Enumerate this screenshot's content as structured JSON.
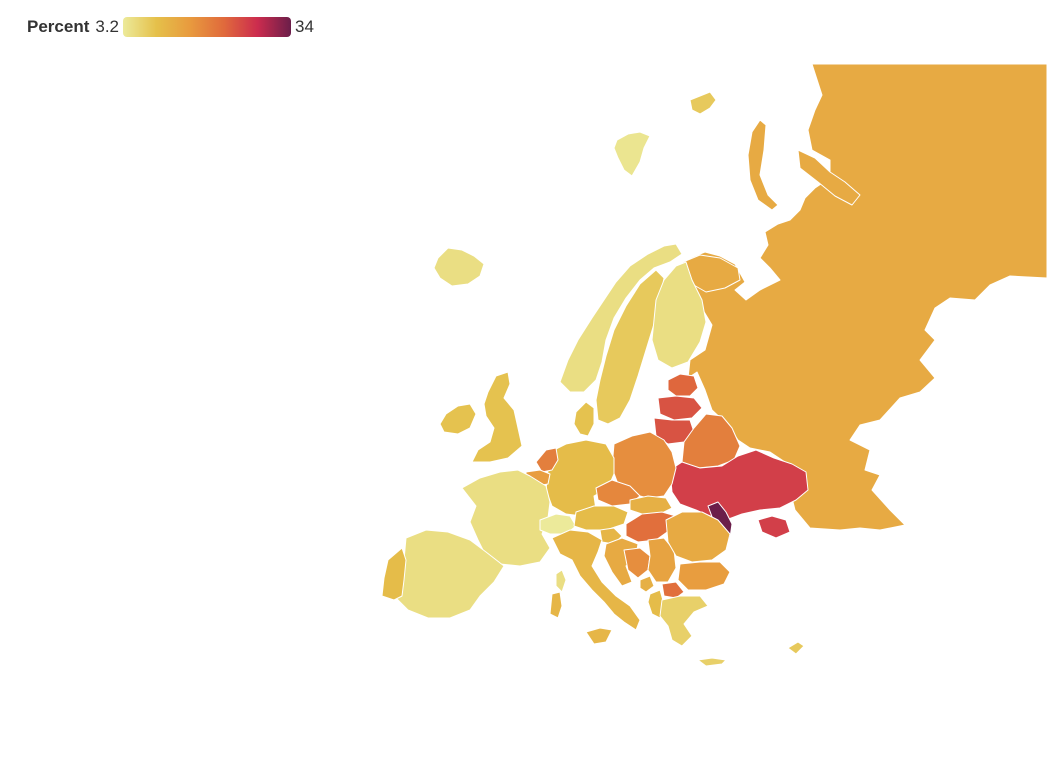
{
  "legend": {
    "title": "Percent",
    "min_label": "3.2",
    "max_label": "34",
    "min": 3.2,
    "max": 34,
    "gradient": [
      "#ecea9a",
      "#e5c04a",
      "#e89a3e",
      "#e06a3c",
      "#cc2c4e",
      "#6b1e4a"
    ]
  },
  "regions": [
    {
      "id": "russia",
      "value": 13
    },
    {
      "id": "novaya-zemlya",
      "value": 13
    },
    {
      "id": "kola",
      "value": 13
    },
    {
      "id": "iceland",
      "value": 5
    },
    {
      "id": "svalbard",
      "value": 4
    },
    {
      "id": "franz-josef",
      "value": 8
    },
    {
      "id": "norway",
      "value": 5
    },
    {
      "id": "sweden",
      "value": 8
    },
    {
      "id": "finland",
      "value": 5
    },
    {
      "id": "estonia",
      "value": 22
    },
    {
      "id": "latvia",
      "value": 24
    },
    {
      "id": "lithuania",
      "value": 24
    },
    {
      "id": "belarus",
      "value": 19
    },
    {
      "id": "ukraine",
      "value": 26
    },
    {
      "id": "crimea",
      "value": 26
    },
    {
      "id": "moldova",
      "value": 34
    },
    {
      "id": "poland",
      "value": 17
    },
    {
      "id": "germany",
      "value": 10
    },
    {
      "id": "denmark",
      "value": 9
    },
    {
      "id": "netherlands",
      "value": 19
    },
    {
      "id": "belgium",
      "value": 15
    },
    {
      "id": "france",
      "value": 5
    },
    {
      "id": "spain",
      "value": 5
    },
    {
      "id": "portugal",
      "value": 10
    },
    {
      "id": "uk",
      "value": 9
    },
    {
      "id": "ireland",
      "value": 9
    },
    {
      "id": "switzerland",
      "value": 3.2
    },
    {
      "id": "austria",
      "value": 10
    },
    {
      "id": "czechia",
      "value": 18
    },
    {
      "id": "slovakia",
      "value": 12
    },
    {
      "id": "hungary",
      "value": 21
    },
    {
      "id": "slovenia",
      "value": 11
    },
    {
      "id": "croatia",
      "value": 13
    },
    {
      "id": "bosnia",
      "value": 17
    },
    {
      "id": "serbia",
      "value": 14
    },
    {
      "id": "romania",
      "value": 13
    },
    {
      "id": "bulgaria",
      "value": 15
    },
    {
      "id": "north-macedonia",
      "value": 21
    },
    {
      "id": "albania",
      "value": 10
    },
    {
      "id": "montenegro",
      "value": 12
    },
    {
      "id": "greece",
      "value": 7
    },
    {
      "id": "italy",
      "value": 11
    },
    {
      "id": "sardinia",
      "value": 11
    },
    {
      "id": "sicily",
      "value": 11
    },
    {
      "id": "corsica",
      "value": 5
    },
    {
      "id": "crete",
      "value": 7
    },
    {
      "id": "cyprus",
      "value": 8
    }
  ]
}
